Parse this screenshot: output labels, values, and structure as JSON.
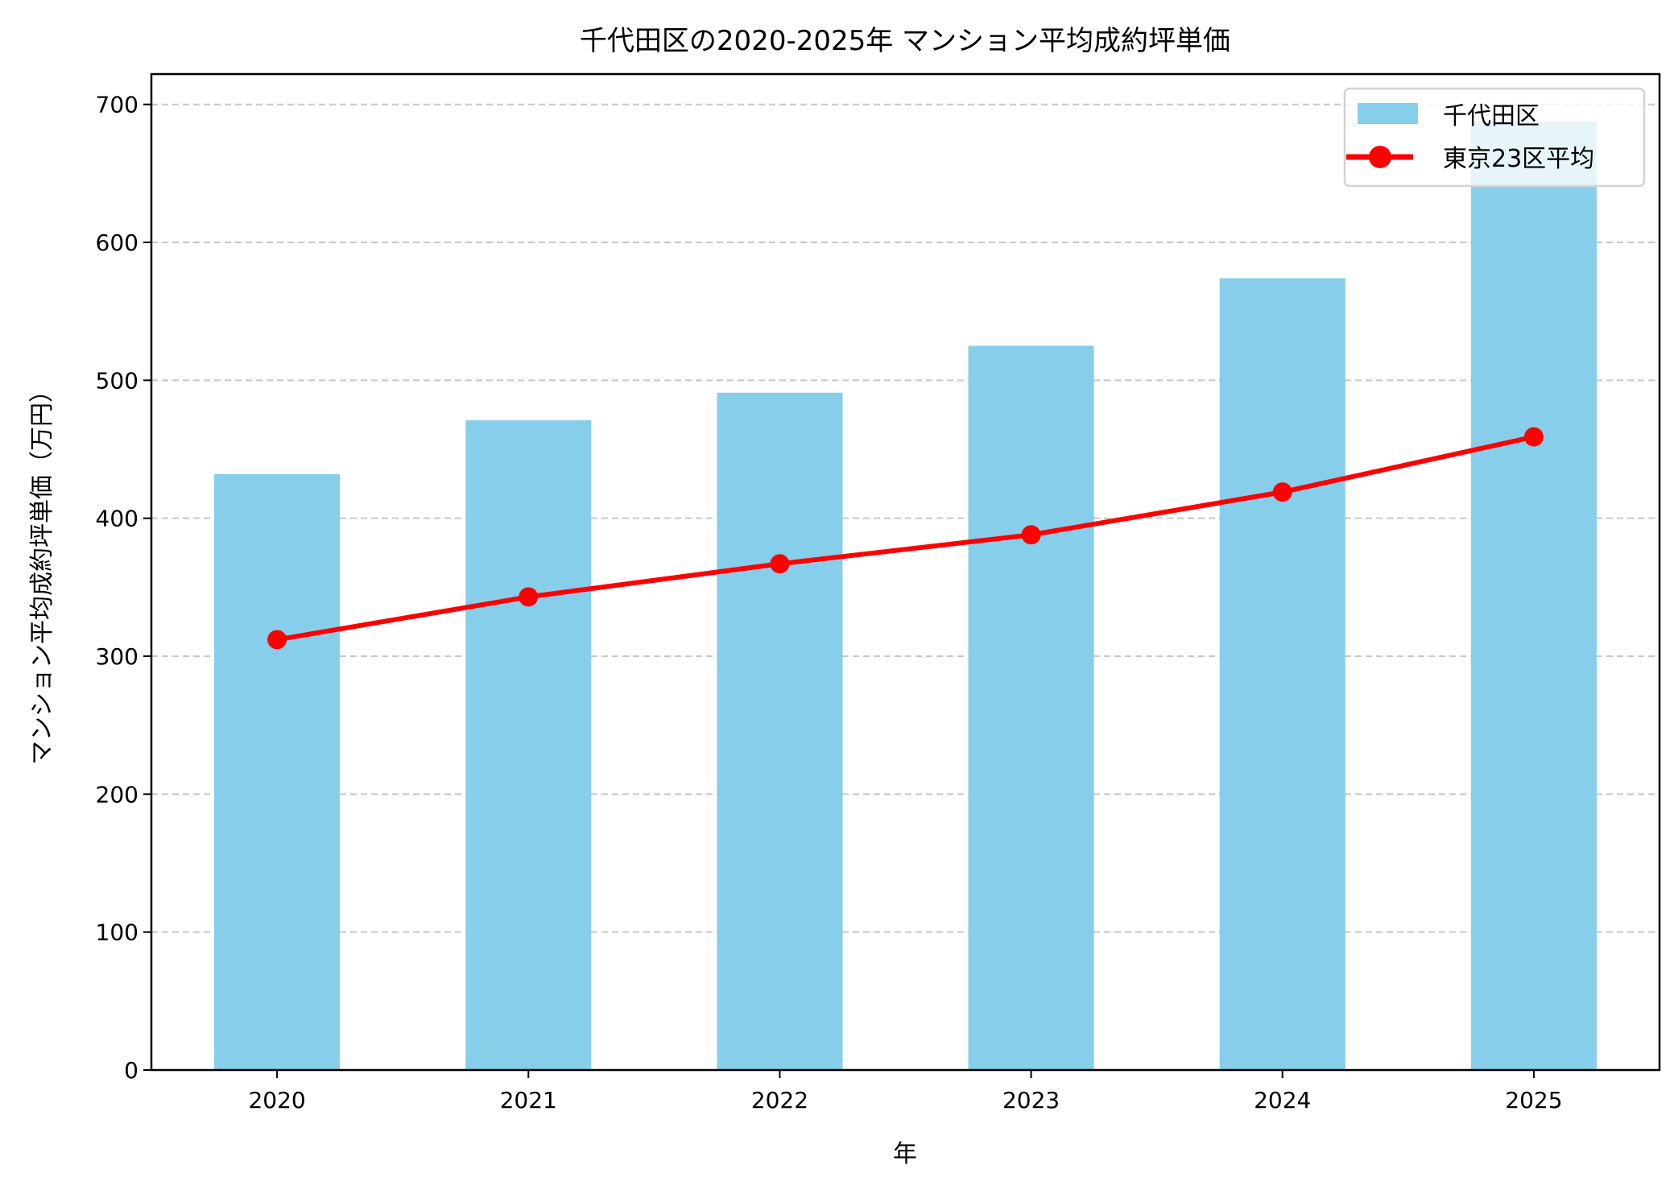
{
  "chart_data": {
    "type": "bar",
    "title": "千代田区の2020-2025年 マンション平均成約坪単価",
    "xlabel": "年",
    "ylabel": "マンション平均成約坪単価（万円）",
    "categories": [
      "2020",
      "2021",
      "2022",
      "2023",
      "2024",
      "2025"
    ],
    "ylim": [
      0,
      722
    ],
    "yticks": [
      0,
      100,
      200,
      300,
      400,
      500,
      600,
      700
    ],
    "grid": "y-dashed",
    "legend_position": "top-right",
    "series": [
      {
        "name": "千代田区",
        "type": "bar",
        "color": "#87CEEB",
        "values": [
          432,
          471,
          491,
          525,
          574,
          688
        ]
      },
      {
        "name": "東京23区平均",
        "type": "line",
        "marker": "circle",
        "color": "#FF0000",
        "values": [
          312,
          343,
          367,
          388,
          419,
          459
        ]
      }
    ]
  }
}
